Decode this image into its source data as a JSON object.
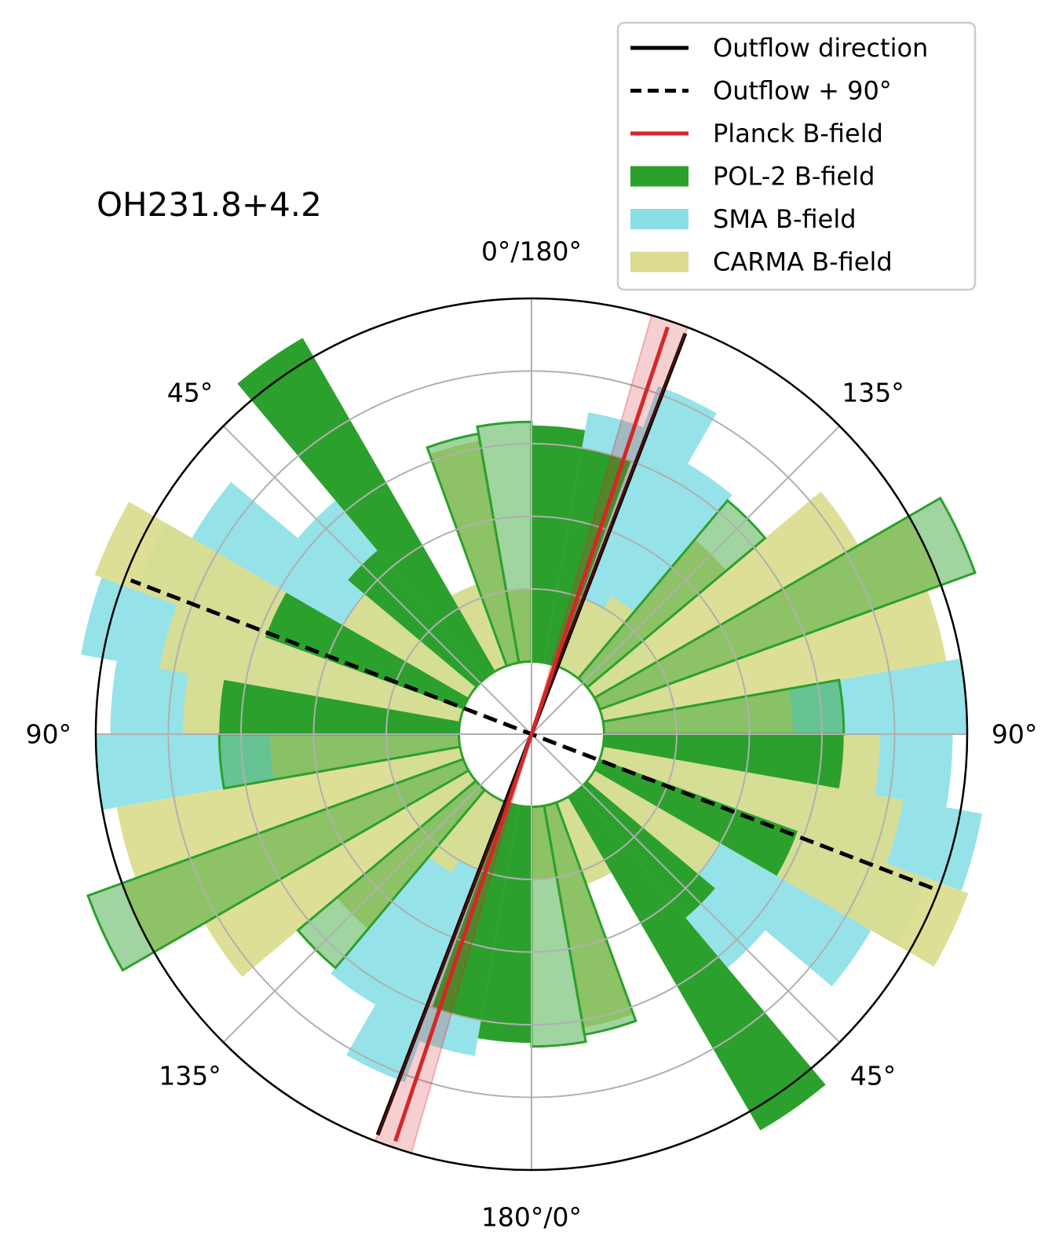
{
  "chart_data": {
    "type": "polar-histogram",
    "title": "OH231.8+4.2",
    "tick_labels": [
      {
        "angle_deg": 0,
        "label": "0°/180°"
      },
      {
        "angle_deg": 45,
        "label": "135°"
      },
      {
        "angle_deg": 90,
        "label": "90°"
      },
      {
        "angle_deg": 135,
        "label": "45°"
      },
      {
        "angle_deg": 180,
        "label": "180°/0°"
      },
      {
        "angle_deg": 225,
        "label": "135°"
      },
      {
        "angle_deg": 270,
        "label": "90°"
      },
      {
        "angle_deg": 315,
        "label": "45°"
      }
    ],
    "grid": true,
    "radial_rings": [
      2,
      3,
      4,
      5,
      6
    ],
    "r_range": [
      0,
      6
    ],
    "inner_hole_radius": 1,
    "legend_position": "top-right",
    "legend": [
      {
        "label": "Outflow direction",
        "kind": "line",
        "color": "#000000",
        "dash": false
      },
      {
        "label": "Outflow + 90°",
        "kind": "line",
        "color": "#000000",
        "dash": true
      },
      {
        "label": "Planck B-field",
        "kind": "line",
        "color": "#d62728",
        "dash": false
      },
      {
        "label": "POL-2 B-field",
        "kind": "patch",
        "color": "#2ca02c"
      },
      {
        "label": "SMA B-field",
        "kind": "patch",
        "color": "#8cdfe7"
      },
      {
        "label": "CARMA B-field",
        "kind": "patch",
        "color": "#dbdc8d"
      }
    ],
    "series": [
      {
        "name": "SMA B-field",
        "color": "#8cdfe7",
        "style": "filled",
        "bars": [
          {
            "start_deg": 0,
            "end_deg": 10,
            "height": 2.9
          },
          {
            "start_deg": 10,
            "end_deg": 20,
            "height": 3.5
          },
          {
            "start_deg": 20,
            "end_deg": 30,
            "height": 4.1
          },
          {
            "start_deg": 30,
            "end_deg": 40,
            "height": 3.3
          },
          {
            "start_deg": 40,
            "end_deg": 50,
            "height": 1.0
          },
          {
            "start_deg": 50,
            "end_deg": 60,
            "height": 1.0
          },
          {
            "start_deg": 60,
            "end_deg": 70,
            "height": 1.0
          },
          {
            "start_deg": 70,
            "end_deg": 80,
            "height": 1.0
          },
          {
            "start_deg": 80,
            "end_deg": 90,
            "height": 5.0
          },
          {
            "start_deg": 90,
            "end_deg": 100,
            "height": 4.8
          },
          {
            "start_deg": 100,
            "end_deg": 110,
            "height": 5.3
          },
          {
            "start_deg": 110,
            "end_deg": 120,
            "height": 4.8
          },
          {
            "start_deg": 120,
            "end_deg": 130,
            "height": 4.4
          },
          {
            "start_deg": 130,
            "end_deg": 140,
            "height": 3.2
          },
          {
            "start_deg": 140,
            "end_deg": 150,
            "height": 2.7
          },
          {
            "start_deg": 150,
            "end_deg": 160,
            "height": 1.2
          }
        ]
      },
      {
        "name": "CARMA B-field",
        "color": "#dbdc8d",
        "style": "filled",
        "bars": [
          {
            "start_deg": 0,
            "end_deg": 10,
            "height": 1.0
          },
          {
            "start_deg": 10,
            "end_deg": 20,
            "height": 1.05
          },
          {
            "start_deg": 20,
            "end_deg": 30,
            "height": 1.0
          },
          {
            "start_deg": 30,
            "end_deg": 40,
            "height": 1.2
          },
          {
            "start_deg": 40,
            "end_deg": 50,
            "height": 2.5
          },
          {
            "start_deg": 50,
            "end_deg": 60,
            "height": 4.2
          },
          {
            "start_deg": 60,
            "end_deg": 70,
            "height": 5.0
          },
          {
            "start_deg": 70,
            "end_deg": 80,
            "height": 4.8
          },
          {
            "start_deg": 80,
            "end_deg": 90,
            "height": 2.6
          },
          {
            "start_deg": 90,
            "end_deg": 100,
            "height": 3.8
          },
          {
            "start_deg": 100,
            "end_deg": 110,
            "height": 4.2
          },
          {
            "start_deg": 110,
            "end_deg": 120,
            "height": 5.4
          },
          {
            "start_deg": 120,
            "end_deg": 130,
            "height": 2.0
          },
          {
            "start_deg": 130,
            "end_deg": 140,
            "height": 1.0
          },
          {
            "start_deg": 140,
            "end_deg": 150,
            "height": 1.0
          },
          {
            "start_deg": 150,
            "end_deg": 160,
            "height": 1.2
          },
          {
            "start_deg": 160,
            "end_deg": 170,
            "height": 3.1
          },
          {
            "start_deg": 170,
            "end_deg": 180,
            "height": 1.0
          }
        ]
      },
      {
        "name": "POL-2 B-field",
        "color": "#2ca02c",
        "style": "filled",
        "bars": [
          {
            "start_deg": 0,
            "end_deg": 10,
            "height": 3.25
          },
          {
            "start_deg": 10,
            "end_deg": 20,
            "height": 3.0
          },
          {
            "start_deg": 90,
            "end_deg": 100,
            "height": 3.3
          },
          {
            "start_deg": 110,
            "end_deg": 120,
            "height": 2.9
          },
          {
            "start_deg": 130,
            "end_deg": 140,
            "height": 2.3
          },
          {
            "start_deg": 140,
            "end_deg": 150,
            "height": 5.3
          }
        ]
      },
      {
        "name": "POL-2 B-field",
        "color": "#2ca02c",
        "style": "outlined",
        "bars": [
          {
            "start_deg": 40,
            "end_deg": 50,
            "height": 3.2
          },
          {
            "start_deg": 60,
            "end_deg": 70,
            "height": 5.5
          },
          {
            "start_deg": 80,
            "end_deg": 90,
            "height": 3.3
          },
          {
            "start_deg": 160,
            "end_deg": 170,
            "height": 3.2
          },
          {
            "start_deg": 170,
            "end_deg": 180,
            "height": 3.3
          }
        ]
      }
    ],
    "lines": [
      {
        "name": "Outflow direction",
        "angle_deg": 21,
        "color": "#000000",
        "dash": false
      },
      {
        "name": "Outflow + 90°",
        "angle_deg": 111,
        "color": "#000000",
        "dash": true
      },
      {
        "name": "Planck B-field",
        "angle_deg": 18.5,
        "color": "#d62728",
        "dash": false,
        "uncertainty_deg": 2.5
      }
    ]
  }
}
